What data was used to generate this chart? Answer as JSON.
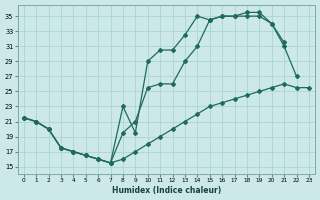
{
  "xlabel": "Humidex (Indice chaleur)",
  "bg_color": "#cce8e8",
  "grid_color": "#aad4d4",
  "line_color": "#1e6b5e",
  "xlim": [
    -0.5,
    23.5
  ],
  "ylim": [
    14,
    36.5
  ],
  "xticks": [
    0,
    1,
    2,
    3,
    4,
    5,
    6,
    7,
    8,
    9,
    10,
    11,
    12,
    13,
    14,
    15,
    16,
    17,
    18,
    19,
    20,
    21,
    22,
    23
  ],
  "yticks": [
    15,
    17,
    19,
    21,
    23,
    25,
    27,
    29,
    31,
    33,
    35
  ],
  "series1_x": [
    0,
    1,
    2,
    3,
    4,
    5,
    6,
    7,
    8,
    9,
    10,
    11,
    12,
    13,
    14,
    15,
    16,
    17,
    18,
    19,
    20,
    21,
    22,
    23
  ],
  "series1_y": [
    21.5,
    21,
    20,
    17.5,
    17,
    16.5,
    16,
    15.5,
    16,
    17,
    18,
    19,
    20,
    21,
    22,
    23,
    23.5,
    24,
    24.5,
    25,
    25.5,
    26,
    25.5,
    25.5
  ],
  "series2_x": [
    0,
    1,
    2,
    3,
    4,
    5,
    6,
    7,
    8,
    9,
    10,
    11,
    12,
    13,
    14,
    15,
    16,
    17,
    18,
    19,
    20,
    21,
    22
  ],
  "series2_y": [
    21.5,
    21,
    20,
    17.5,
    17,
    16.5,
    16,
    15.5,
    19.5,
    21,
    25.5,
    26,
    26,
    29,
    31,
    34.5,
    35,
    35,
    35,
    35,
    34,
    31,
    27
  ],
  "series3_x": [
    0,
    1,
    2,
    3,
    4,
    5,
    6,
    7,
    8,
    9,
    10,
    11,
    12,
    13,
    14,
    15,
    16,
    17,
    18,
    19,
    20,
    21
  ],
  "series3_y": [
    21.5,
    21,
    20,
    17.5,
    17,
    16.5,
    16,
    15.5,
    23,
    19.5,
    29,
    30.5,
    30.5,
    32.5,
    35,
    34.5,
    35,
    35,
    35.5,
    35.5,
    34,
    31.5
  ]
}
